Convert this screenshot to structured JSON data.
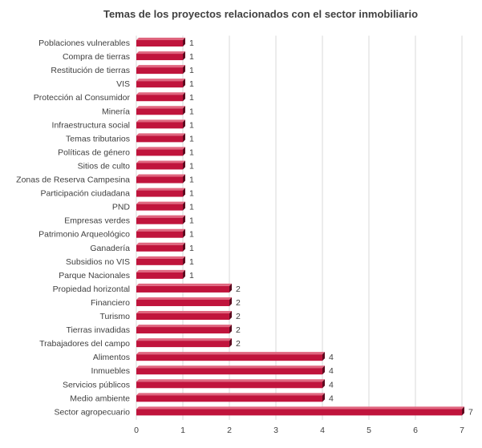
{
  "chart_data": {
    "type": "bar",
    "orientation": "horizontal",
    "title": "Temas de los proyectos relacionados con el sector inmobiliario",
    "xlabel": "",
    "ylabel": "",
    "xlim": [
      0,
      7
    ],
    "ticks": [
      "0",
      "1",
      "2",
      "3",
      "4",
      "5",
      "6",
      "7"
    ],
    "grid": true,
    "legend": "none",
    "categories": [
      "Poblaciones vulnerables",
      "Compra de tierras",
      "Restitución de tierras",
      "VIS",
      "Protección al Consumidor",
      "Minería",
      "Infraestructura social",
      "Temas tributarios",
      "Políticas de género",
      "Sitios de culto",
      "Zonas de Reserva Campesina",
      "Participación ciudadana",
      "PND",
      "Empresas verdes",
      "Patrimonio Arqueológico",
      "Ganadería",
      "Subsidios no VIS",
      "Parque Nacionales",
      "Propiedad horizontal",
      "Financiero",
      "Turismo",
      "Tierras invadidas",
      "Trabajadores del campo",
      "Alimentos",
      "Inmuebles",
      "Servicios públicos",
      "Medio ambiente",
      "Sector agropecuario"
    ],
    "values": [
      1,
      1,
      1,
      1,
      1,
      1,
      1,
      1,
      1,
      1,
      1,
      1,
      1,
      1,
      1,
      1,
      1,
      1,
      2,
      2,
      2,
      2,
      2,
      4,
      4,
      4,
      4,
      7
    ],
    "data_labels": [
      "1",
      "1",
      "1",
      "1",
      "1",
      "1",
      "1",
      "1",
      "1",
      "1",
      "1",
      "1",
      "1",
      "1",
      "1",
      "1",
      "1",
      "1",
      "2",
      "2",
      "2",
      "2",
      "2",
      "4",
      "4",
      "4",
      "4",
      "7"
    ],
    "colors": {
      "bar": "#c0143c",
      "bar_top": "#e0667f",
      "bar_side": "#5e0a1f",
      "grid": "#d9d9d9",
      "text": "#404040"
    }
  }
}
